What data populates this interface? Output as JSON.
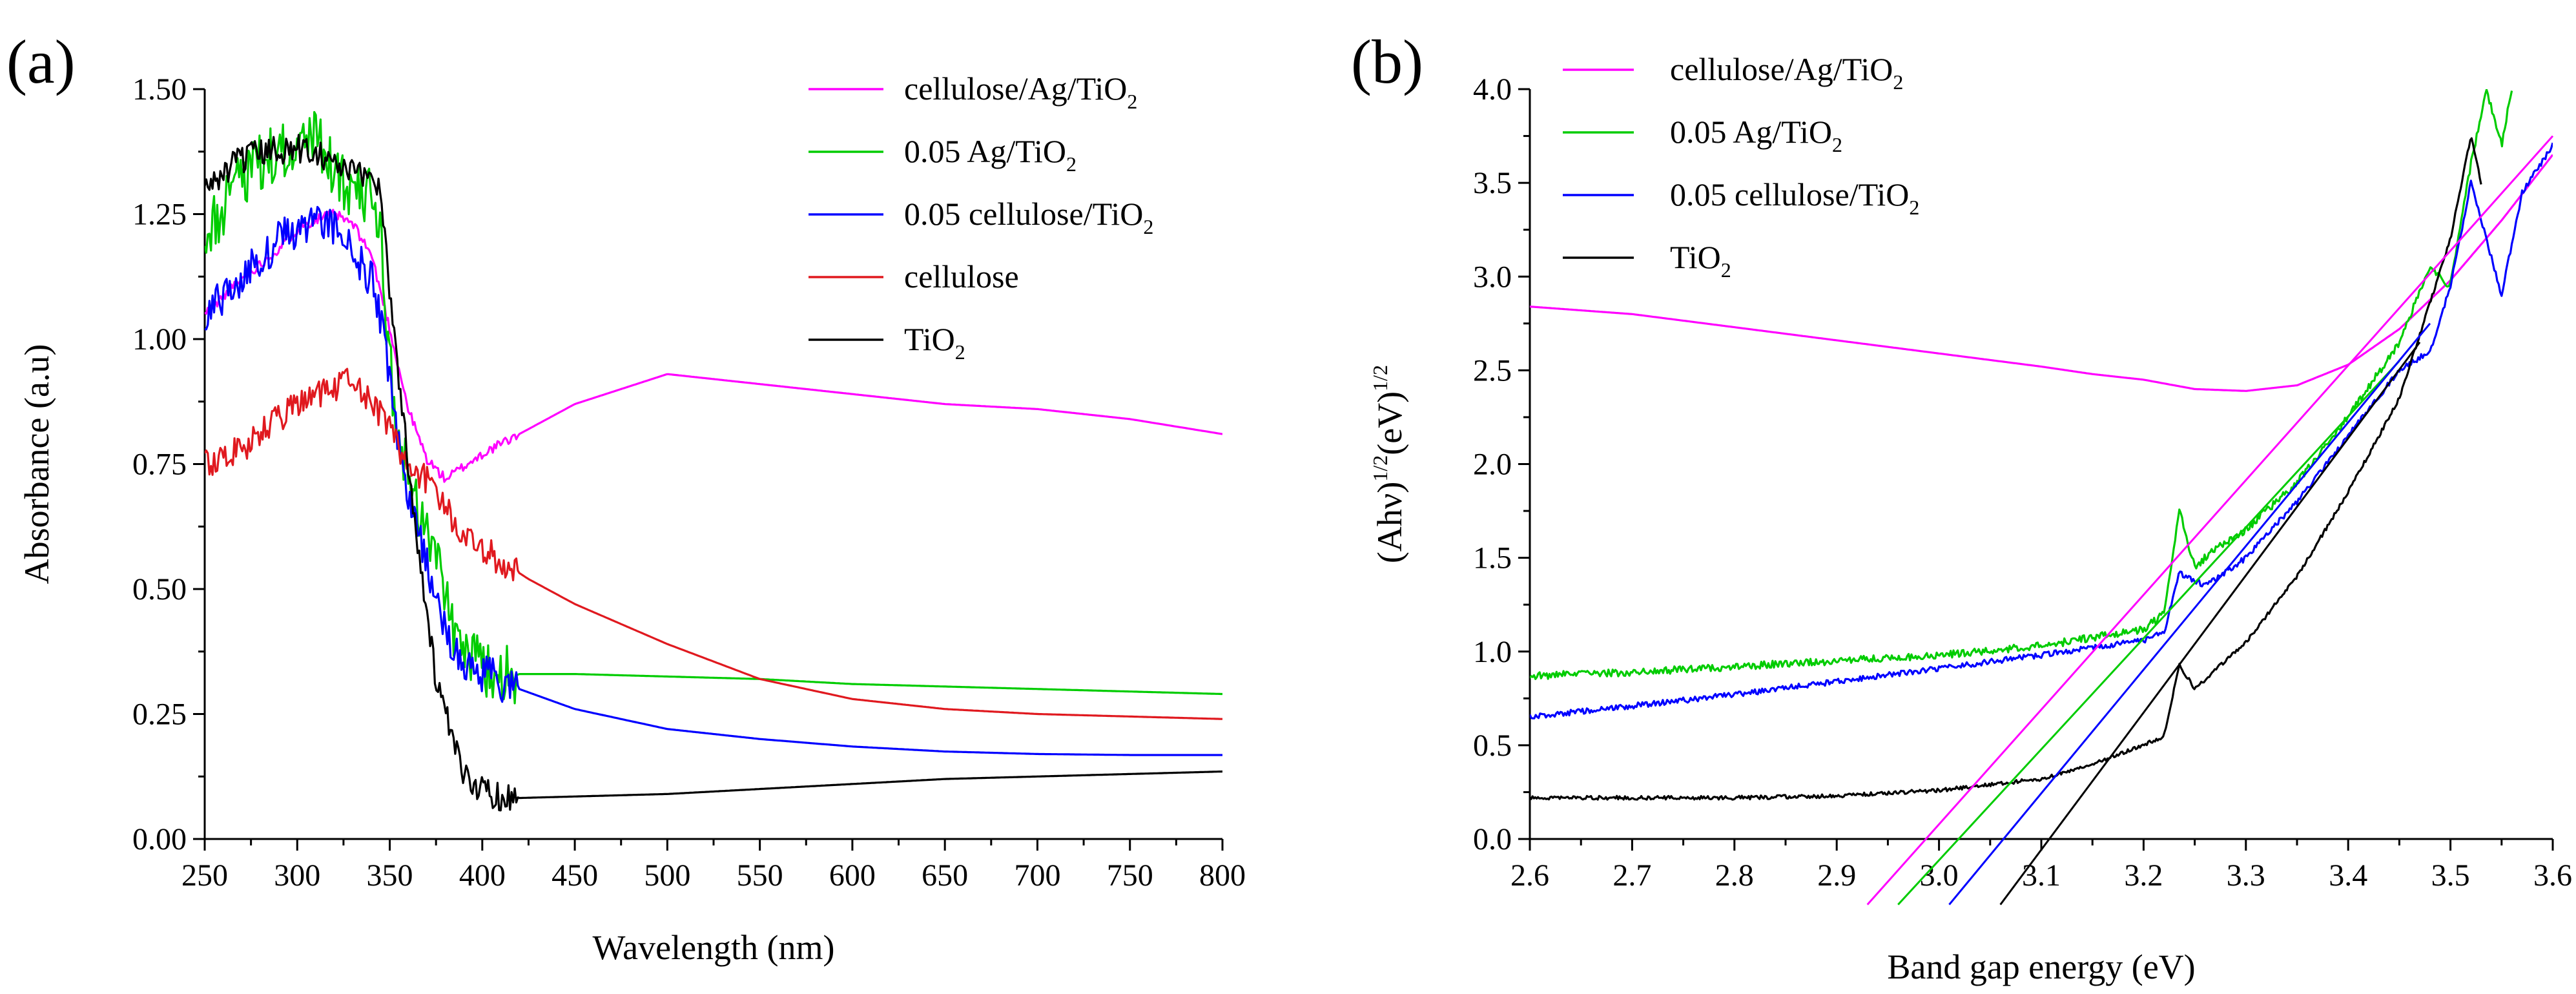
{
  "chart_data": [
    {
      "panel": "(a)",
      "type": "line",
      "title": "",
      "xlabel": "Wavelength (nm)",
      "ylabel": "Absorbance (a.u)",
      "xlim": [
        250,
        800
      ],
      "ylim": [
        0,
        1.5
      ],
      "xticks": [
        "250",
        "300",
        "350",
        "400",
        "450",
        "500",
        "550",
        "600",
        "650",
        "700",
        "750",
        "800"
      ],
      "yticks": [
        "0.00",
        "0.25",
        "0.50",
        "0.75",
        "1.00",
        "1.25",
        "1.50"
      ],
      "xtick_values": [
        250,
        300,
        350,
        400,
        450,
        500,
        550,
        600,
        650,
        700,
        750,
        800
      ],
      "ytick_values": [
        0,
        0.25,
        0.5,
        0.75,
        1.0,
        1.25,
        1.5
      ],
      "grid": false,
      "legend_position": "top-right",
      "series": [
        {
          "name": "cellulose/Ag/TiO2",
          "label_main": "cellulose/Ag/TiO",
          "label_sub": "2",
          "color": "#ff00ff",
          "noise": 0.01,
          "x": [
            250,
            270,
            290,
            300,
            310,
            320,
            330,
            340,
            350,
            360,
            370,
            380,
            400,
            450,
            500,
            550,
            600,
            650,
            700,
            750,
            800
          ],
          "y": [
            1.05,
            1.12,
            1.18,
            1.22,
            1.24,
            1.25,
            1.23,
            1.17,
            1.02,
            0.86,
            0.76,
            0.72,
            0.77,
            0.87,
            0.93,
            0.91,
            0.89,
            0.87,
            0.86,
            0.84,
            0.81
          ]
        },
        {
          "name": "0.05 Ag/TiO2",
          "label_main": "0.05 Ag/TiO",
          "label_sub": "2",
          "color": "#00cc00",
          "noise": 0.06,
          "x": [
            250,
            270,
            290,
            310,
            320,
            330,
            340,
            345,
            350,
            355,
            360,
            370,
            380,
            385,
            400,
            420,
            450,
            500,
            550,
            600,
            650,
            700,
            750,
            800
          ],
          "y": [
            1.2,
            1.32,
            1.38,
            1.4,
            1.34,
            1.3,
            1.28,
            1.2,
            0.95,
            0.8,
            0.72,
            0.62,
            0.5,
            0.38,
            0.34,
            0.33,
            0.33,
            0.325,
            0.32,
            0.31,
            0.305,
            0.3,
            0.295,
            0.29
          ]
        },
        {
          "name": "0.05 cellulose/TiO2",
          "label_main": "0.05 cellulose/TiO",
          "label_sub": "2",
          "color": "#0000ff",
          "noise": 0.04,
          "x": [
            250,
            270,
            290,
            310,
            320,
            330,
            340,
            345,
            350,
            355,
            360,
            370,
            380,
            385,
            400,
            420,
            450,
            500,
            550,
            600,
            650,
            700,
            750,
            800
          ],
          "y": [
            1.05,
            1.12,
            1.2,
            1.24,
            1.22,
            1.18,
            1.12,
            1.04,
            0.92,
            0.78,
            0.7,
            0.55,
            0.42,
            0.37,
            0.33,
            0.3,
            0.26,
            0.22,
            0.2,
            0.185,
            0.175,
            0.17,
            0.168,
            0.168
          ]
        },
        {
          "name": "cellulose",
          "label_main": "cellulose",
          "label_sub": "",
          "color": "#e0191f",
          "noise": 0.03,
          "x": [
            250,
            270,
            290,
            300,
            310,
            320,
            330,
            340,
            350,
            360,
            370,
            380,
            390,
            400,
            425,
            450,
            500,
            550,
            600,
            650,
            700,
            750,
            800
          ],
          "y": [
            0.75,
            0.78,
            0.84,
            0.87,
            0.89,
            0.9,
            0.92,
            0.88,
            0.82,
            0.75,
            0.72,
            0.66,
            0.61,
            0.58,
            0.52,
            0.47,
            0.39,
            0.32,
            0.28,
            0.26,
            0.25,
            0.245,
            0.24
          ]
        },
        {
          "name": "TiO2",
          "label_main": "TiO",
          "label_sub": "2",
          "color": "#000000",
          "noise": 0.03,
          "x": [
            250,
            270,
            290,
            310,
            320,
            330,
            340,
            345,
            350,
            355,
            360,
            370,
            375,
            380,
            385,
            390,
            400,
            410,
            420,
            450,
            500,
            550,
            600,
            650,
            700,
            750,
            800
          ],
          "y": [
            1.3,
            1.36,
            1.38,
            1.38,
            1.35,
            1.33,
            1.33,
            1.3,
            1.1,
            0.92,
            0.75,
            0.45,
            0.32,
            0.25,
            0.18,
            0.13,
            0.1,
            0.085,
            0.082,
            0.085,
            0.09,
            0.1,
            0.11,
            0.12,
            0.125,
            0.13,
            0.135
          ]
        }
      ]
    },
    {
      "panel": "(b)",
      "type": "line",
      "title": "",
      "xlabel": "Band gap energy (eV)",
      "ylabel_parts": [
        "(Ahν)",
        "1/2",
        "(eV)",
        "1/2"
      ],
      "xlim": [
        2.6,
        3.6
      ],
      "ylim": [
        0,
        4.0
      ],
      "xticks": [
        "2.6",
        "2.7",
        "2.8",
        "2.9",
        "3.0",
        "3.1",
        "3.2",
        "3.3",
        "3.4",
        "3.5",
        "3.6"
      ],
      "yticks": [
        "0.0",
        "0.5",
        "1.0",
        "1.5",
        "2.0",
        "2.5",
        "3.0",
        "3.5",
        "4.0"
      ],
      "xtick_values": [
        2.6,
        2.7,
        2.8,
        2.9,
        3.0,
        3.1,
        3.2,
        3.3,
        3.4,
        3.5,
        3.6
      ],
      "ytick_values": [
        0,
        0.5,
        1.0,
        1.5,
        2.0,
        2.5,
        3.0,
        3.5,
        4.0
      ],
      "grid": false,
      "legend_position": "top-left",
      "series": [
        {
          "name": "cellulose/Ag/TiO2",
          "label_main": "cellulose/Ag/TiO",
          "label_sub": "2",
          "color": "#ff00ff",
          "noise": 0,
          "x": [
            2.6,
            2.7,
            2.8,
            2.9,
            3.0,
            3.1,
            3.15,
            3.2,
            3.25,
            3.3,
            3.35,
            3.4,
            3.45,
            3.5,
            3.55,
            3.6
          ],
          "y": [
            2.84,
            2.8,
            2.73,
            2.66,
            2.59,
            2.52,
            2.48,
            2.45,
            2.4,
            2.39,
            2.42,
            2.53,
            2.72,
            2.98,
            3.3,
            3.65
          ]
        },
        {
          "name": "0.05 Ag/TiO2",
          "label_main": "0.05 Ag/TiO",
          "label_sub": "2",
          "color": "#00cc00",
          "noise": 0.02,
          "x": [
            2.6,
            2.7,
            2.8,
            2.9,
            3.0,
            3.1,
            3.2,
            3.22,
            3.235,
            3.25,
            3.27,
            3.3,
            3.35,
            3.4,
            3.45,
            3.48,
            3.5,
            3.52,
            3.535,
            3.55,
            3.56
          ],
          "y": [
            0.87,
            0.89,
            0.92,
            0.95,
            0.98,
            1.03,
            1.12,
            1.2,
            1.75,
            1.45,
            1.55,
            1.65,
            1.9,
            2.25,
            2.65,
            3.05,
            2.95,
            3.6,
            4.0,
            3.7,
            4.0
          ]
        },
        {
          "name": "0.05 cellulose/TiO2",
          "label_main": "0.05 cellulose/TiO",
          "label_sub": "2",
          "color": "#0000ff",
          "noise": 0.015,
          "x": [
            2.6,
            2.7,
            2.8,
            2.9,
            3.0,
            3.1,
            3.2,
            3.22,
            3.235,
            3.26,
            3.3,
            3.35,
            3.4,
            3.45,
            3.48,
            3.5,
            3.52,
            3.535,
            3.55,
            3.57,
            3.6
          ],
          "y": [
            0.65,
            0.71,
            0.77,
            0.84,
            0.91,
            0.98,
            1.06,
            1.1,
            1.42,
            1.35,
            1.5,
            1.8,
            2.15,
            2.5,
            2.6,
            2.95,
            3.5,
            3.2,
            2.9,
            3.45,
            3.7
          ]
        },
        {
          "name": "TiO2",
          "label_main": "TiO",
          "label_sub": "2",
          "color": "#000000",
          "noise": 0.01,
          "x": [
            2.6,
            2.7,
            2.8,
            2.9,
            3.0,
            3.1,
            3.15,
            3.2,
            3.22,
            3.235,
            3.25,
            3.27,
            3.3,
            3.35,
            3.4,
            3.45,
            3.5,
            3.52,
            3.53
          ],
          "y": [
            0.22,
            0.22,
            0.22,
            0.23,
            0.26,
            0.32,
            0.4,
            0.5,
            0.55,
            0.93,
            0.8,
            0.9,
            1.05,
            1.4,
            1.85,
            2.35,
            3.2,
            3.75,
            3.5
          ]
        }
      ],
      "fit_lines": [
        {
          "name": "cellulose/Ag/TiO2 fit",
          "color": "#ff00ff",
          "x": [
            2.93,
            3.6
          ],
          "y": [
            -0.35,
            3.75
          ]
        },
        {
          "name": "0.05 Ag/TiO2 fit",
          "color": "#00cc00",
          "x": [
            2.96,
            3.45
          ],
          "y": [
            -0.35,
            2.55
          ]
        },
        {
          "name": "0.05 cellulose/TiO2 fit",
          "color": "#0000ff",
          "x": [
            3.01,
            3.48
          ],
          "y": [
            -0.35,
            2.75
          ]
        },
        {
          "name": "TiO2 fit",
          "color": "#000000",
          "x": [
            3.06,
            3.47
          ],
          "y": [
            -0.35,
            2.65
          ]
        }
      ]
    }
  ]
}
